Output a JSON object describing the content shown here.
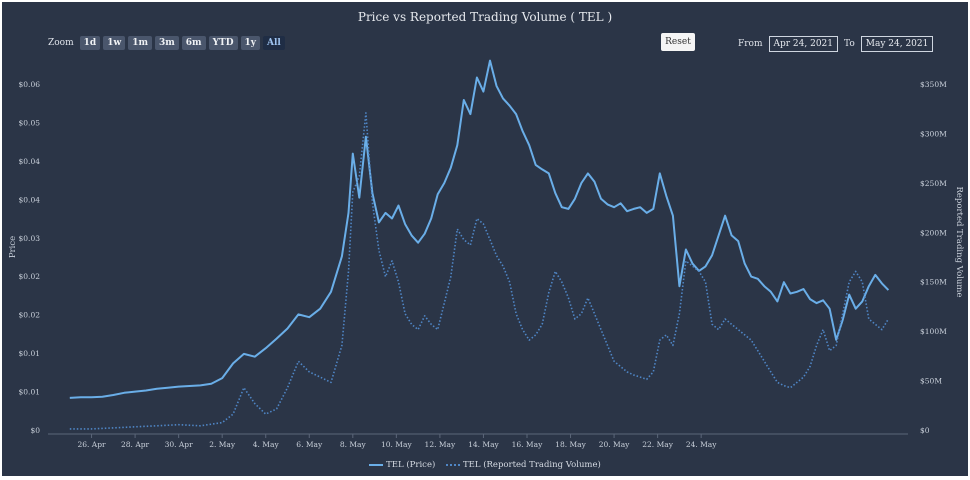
{
  "title": "Price vs Reported Trading Volume ( TEL )",
  "zoom": {
    "label": "Zoom",
    "buttons": [
      "1d",
      "1w",
      "1m",
      "3m",
      "6m",
      "YTD",
      "1y",
      "All"
    ],
    "active": "All"
  },
  "reset_label": "Reset",
  "range": {
    "from_label": "From",
    "from_value": "Apr 24, 2021",
    "to_label": "To",
    "to_value": "May 24, 2021"
  },
  "legend": {
    "price": "TEL (Price)",
    "volume": "TEL (Reported Trading Volume)"
  },
  "colors": {
    "background": "#2b3547",
    "price": "#6aaee8",
    "volume": "#4f86c6"
  },
  "chart_data": {
    "type": "line",
    "xlabel": "",
    "x_ticks": [
      "26. Apr",
      "28. Apr",
      "30. Apr",
      "2. May",
      "4. May",
      "6. May",
      "8. May",
      "10. May",
      "12. May",
      "14. May",
      "16. May",
      "18. May",
      "20. May",
      "22. May",
      "24. May"
    ],
    "y_left": {
      "label": "Price",
      "ticks": [
        "$0",
        "$0.01",
        "$0.01",
        "$0.02",
        "$0.02",
        "$0.03",
        "$0.04",
        "$0.04",
        "$0.05",
        "$0.06"
      ],
      "range": [
        0,
        0.0656
      ]
    },
    "y_right": {
      "label": "Reported Trading Volume",
      "ticks": [
        "$0",
        "$50M",
        "$100M",
        "$150M",
        "$200M",
        "$250M",
        "$300M",
        "$350M"
      ],
      "range": [
        0,
        350000000
      ]
    },
    "series": [
      {
        "name": "TEL (Price)",
        "axis": "left",
        "style": "solid",
        "points": [
          [
            0.0,
            0.0057
          ],
          [
            0.5,
            0.0058
          ],
          [
            1.0,
            0.0058
          ],
          [
            1.5,
            0.0059
          ],
          [
            2.0,
            0.0062
          ],
          [
            2.5,
            0.0066
          ],
          [
            3.0,
            0.0068
          ],
          [
            3.5,
            0.007
          ],
          [
            4.0,
            0.0073
          ],
          [
            4.5,
            0.0075
          ],
          [
            5.0,
            0.0077
          ],
          [
            5.5,
            0.0078
          ],
          [
            6.0,
            0.0079
          ],
          [
            6.5,
            0.0082
          ],
          [
            7.0,
            0.0092
          ],
          [
            7.5,
            0.0118
          ],
          [
            8.0,
            0.0135
          ],
          [
            8.5,
            0.013
          ],
          [
            9.0,
            0.0145
          ],
          [
            9.5,
            0.0162
          ],
          [
            10.0,
            0.018
          ],
          [
            10.5,
            0.0205
          ],
          [
            11.0,
            0.02
          ],
          [
            11.5,
            0.0215
          ],
          [
            12.0,
            0.0245
          ],
          [
            12.5,
            0.0308
          ],
          [
            12.8,
            0.0385
          ],
          [
            13.0,
            0.049
          ],
          [
            13.3,
            0.0412
          ],
          [
            13.6,
            0.052
          ],
          [
            13.9,
            0.042
          ],
          [
            14.2,
            0.0368
          ],
          [
            14.5,
            0.0385
          ],
          [
            14.8,
            0.0375
          ],
          [
            15.1,
            0.0398
          ],
          [
            15.4,
            0.0365
          ],
          [
            15.7,
            0.0345
          ],
          [
            16.0,
            0.0332
          ],
          [
            16.3,
            0.0348
          ],
          [
            16.6,
            0.0375
          ],
          [
            16.9,
            0.0418
          ],
          [
            17.2,
            0.0438
          ],
          [
            17.5,
            0.0465
          ],
          [
            17.8,
            0.0505
          ],
          [
            18.1,
            0.0585
          ],
          [
            18.4,
            0.056
          ],
          [
            18.7,
            0.0625
          ],
          [
            19.0,
            0.06
          ],
          [
            19.3,
            0.0655
          ],
          [
            19.6,
            0.061
          ],
          [
            19.9,
            0.0588
          ],
          [
            20.2,
            0.0575
          ],
          [
            20.5,
            0.056
          ],
          [
            20.8,
            0.053
          ],
          [
            21.1,
            0.0505
          ],
          [
            21.4,
            0.047
          ],
          [
            21.7,
            0.0462
          ],
          [
            22.0,
            0.0455
          ],
          [
            22.3,
            0.042
          ],
          [
            22.6,
            0.0395
          ],
          [
            22.9,
            0.0392
          ],
          [
            23.2,
            0.041
          ],
          [
            23.5,
            0.0438
          ],
          [
            23.8,
            0.0455
          ],
          [
            24.1,
            0.044
          ],
          [
            24.4,
            0.041
          ],
          [
            24.7,
            0.04
          ],
          [
            25.0,
            0.0395
          ],
          [
            25.3,
            0.0402
          ],
          [
            25.6,
            0.0388
          ],
          [
            25.9,
            0.0392
          ],
          [
            26.2,
            0.0395
          ],
          [
            26.5,
            0.0385
          ],
          [
            26.8,
            0.0392
          ],
          [
            27.1,
            0.0455
          ],
          [
            27.4,
            0.0415
          ],
          [
            27.7,
            0.038
          ],
          [
            28.0,
            0.0255
          ],
          [
            28.3,
            0.032
          ],
          [
            28.6,
            0.0295
          ],
          [
            28.9,
            0.0282
          ],
          [
            29.2,
            0.029
          ],
          [
            29.5,
            0.031
          ],
          [
            29.8,
            0.0345
          ],
          [
            30.1,
            0.038
          ],
          [
            30.4,
            0.0345
          ],
          [
            30.7,
            0.0335
          ],
          [
            31.0,
            0.0295
          ],
          [
            31.3,
            0.0272
          ],
          [
            31.6,
            0.0268
          ],
          [
            31.9,
            0.0255
          ],
          [
            32.2,
            0.0245
          ],
          [
            32.5,
            0.0228
          ],
          [
            32.8,
            0.0262
          ],
          [
            33.1,
            0.0242
          ],
          [
            33.4,
            0.0245
          ],
          [
            33.7,
            0.025
          ],
          [
            34.0,
            0.0232
          ],
          [
            34.3,
            0.0225
          ],
          [
            34.6,
            0.023
          ],
          [
            34.9,
            0.0215
          ],
          [
            35.2,
            0.016
          ],
          [
            35.5,
            0.0195
          ],
          [
            35.8,
            0.024
          ],
          [
            36.1,
            0.0215
          ],
          [
            36.4,
            0.0228
          ],
          [
            36.7,
            0.0255
          ],
          [
            37.0,
            0.0275
          ],
          [
            37.3,
            0.026
          ],
          [
            37.6,
            0.0248
          ]
        ]
      },
      {
        "name": "TEL (Reported Trading Volume)",
        "axis": "right",
        "style": "dotted",
        "points": [
          [
            0.0,
            1000000
          ],
          [
            1.0,
            1000000
          ],
          [
            2.0,
            2000000
          ],
          [
            3.0,
            3000000
          ],
          [
            4.0,
            4000000
          ],
          [
            5.0,
            5000000
          ],
          [
            6.0,
            4000000
          ],
          [
            7.0,
            7000000
          ],
          [
            7.5,
            15000000
          ],
          [
            8.0,
            40000000
          ],
          [
            8.5,
            25000000
          ],
          [
            9.0,
            15000000
          ],
          [
            9.5,
            20000000
          ],
          [
            10.0,
            40000000
          ],
          [
            10.5,
            65000000
          ],
          [
            11.0,
            55000000
          ],
          [
            11.5,
            50000000
          ],
          [
            12.0,
            45000000
          ],
          [
            12.5,
            80000000
          ],
          [
            12.8,
            150000000
          ],
          [
            13.0,
            225000000
          ],
          [
            13.3,
            240000000
          ],
          [
            13.6,
            300000000
          ],
          [
            13.9,
            215000000
          ],
          [
            14.2,
            170000000
          ],
          [
            14.5,
            145000000
          ],
          [
            14.8,
            160000000
          ],
          [
            15.1,
            140000000
          ],
          [
            15.4,
            110000000
          ],
          [
            15.7,
            100000000
          ],
          [
            16.0,
            95000000
          ],
          [
            16.3,
            108000000
          ],
          [
            16.6,
            100000000
          ],
          [
            16.9,
            95000000
          ],
          [
            17.2,
            120000000
          ],
          [
            17.5,
            145000000
          ],
          [
            17.8,
            190000000
          ],
          [
            18.1,
            180000000
          ],
          [
            18.4,
            175000000
          ],
          [
            18.7,
            200000000
          ],
          [
            19.0,
            195000000
          ],
          [
            19.3,
            180000000
          ],
          [
            19.6,
            165000000
          ],
          [
            19.9,
            155000000
          ],
          [
            20.2,
            140000000
          ],
          [
            20.5,
            110000000
          ],
          [
            20.8,
            95000000
          ],
          [
            21.1,
            85000000
          ],
          [
            21.4,
            90000000
          ],
          [
            21.7,
            100000000
          ],
          [
            22.0,
            130000000
          ],
          [
            22.3,
            150000000
          ],
          [
            22.6,
            140000000
          ],
          [
            22.9,
            125000000
          ],
          [
            23.2,
            105000000
          ],
          [
            23.5,
            110000000
          ],
          [
            23.8,
            125000000
          ],
          [
            24.1,
            110000000
          ],
          [
            24.4,
            95000000
          ],
          [
            24.7,
            80000000
          ],
          [
            25.0,
            65000000
          ],
          [
            25.3,
            60000000
          ],
          [
            25.6,
            55000000
          ],
          [
            25.9,
            52000000
          ],
          [
            26.2,
            50000000
          ],
          [
            26.5,
            48000000
          ],
          [
            26.8,
            55000000
          ],
          [
            27.1,
            85000000
          ],
          [
            27.4,
            90000000
          ],
          [
            27.7,
            80000000
          ],
          [
            28.0,
            110000000
          ],
          [
            28.3,
            160000000
          ],
          [
            28.6,
            155000000
          ],
          [
            28.9,
            150000000
          ],
          [
            29.2,
            140000000
          ],
          [
            29.5,
            100000000
          ],
          [
            29.8,
            95000000
          ],
          [
            30.1,
            105000000
          ],
          [
            30.4,
            100000000
          ],
          [
            30.7,
            95000000
          ],
          [
            31.0,
            90000000
          ],
          [
            31.3,
            85000000
          ],
          [
            31.6,
            75000000
          ],
          [
            31.9,
            65000000
          ],
          [
            32.2,
            55000000
          ],
          [
            32.5,
            45000000
          ],
          [
            32.8,
            42000000
          ],
          [
            33.1,
            40000000
          ],
          [
            33.4,
            45000000
          ],
          [
            33.7,
            50000000
          ],
          [
            34.0,
            60000000
          ],
          [
            34.3,
            80000000
          ],
          [
            34.6,
            95000000
          ],
          [
            34.9,
            75000000
          ],
          [
            35.2,
            80000000
          ],
          [
            35.5,
            110000000
          ],
          [
            35.8,
            140000000
          ],
          [
            36.1,
            150000000
          ],
          [
            36.4,
            140000000
          ],
          [
            36.7,
            105000000
          ],
          [
            37.0,
            100000000
          ],
          [
            37.3,
            95000000
          ],
          [
            37.6,
            105000000
          ]
        ]
      }
    ]
  }
}
